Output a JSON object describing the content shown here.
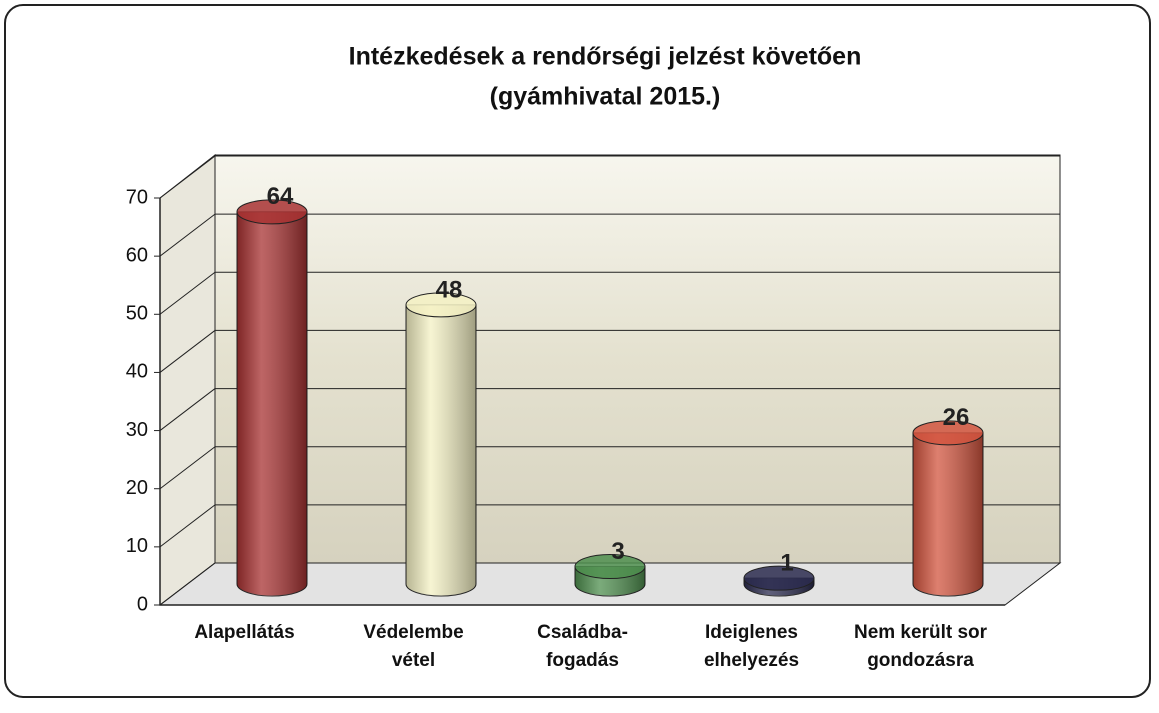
{
  "chart_data": {
    "type": "bar3d",
    "title": [
      "Intézkedések a rendőrségi jelzést követően",
      "(gyámhivatal 2015.)"
    ],
    "categories": [
      [
        "Alapellátás"
      ],
      [
        "Védelembe",
        "vétel"
      ],
      [
        "Családba-",
        "fogadás"
      ],
      [
        "Ideiglenes",
        "elhelyezés"
      ],
      [
        "Nem került sor",
        "gondozásra"
      ]
    ],
    "values": [
      64,
      48,
      3,
      1,
      26
    ],
    "colors": [
      "#a83232",
      "#f4f1c4",
      "#4f8f4f",
      "#2b2b4f",
      "#d2553f"
    ],
    "ylim": [
      0,
      70
    ],
    "yticks": [
      0,
      10,
      20,
      30,
      40,
      50,
      60,
      70
    ],
    "grid": true
  }
}
